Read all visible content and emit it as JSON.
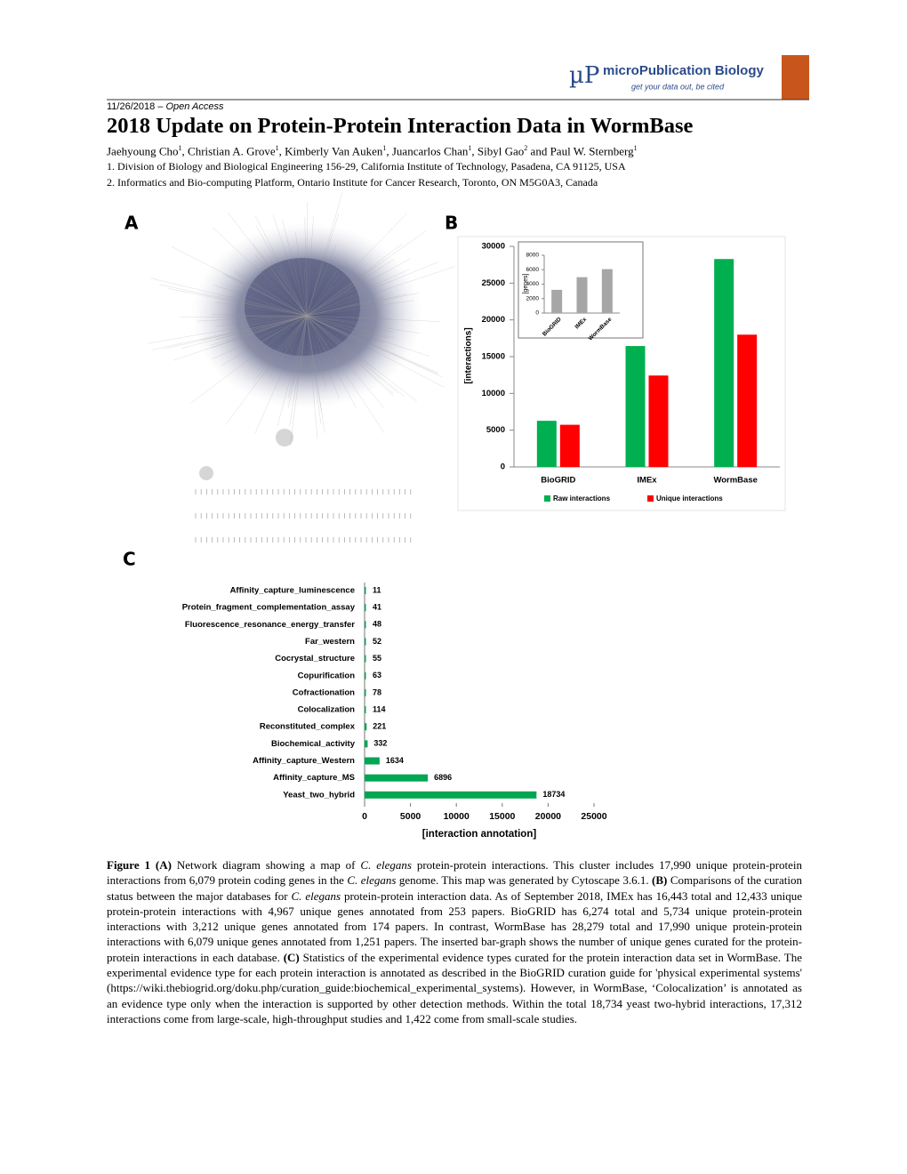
{
  "header": {
    "date": "11/26/2018 –",
    "access": "Open Access",
    "logo_mark": "µP",
    "logo_name": "microPublication Biology",
    "logo_tagline": "get your data out, be cited"
  },
  "title": "2018 Update on Protein-Protein Interaction Data in WormBase",
  "authors": [
    {
      "name": "Jaehyoung Cho",
      "aff": "1"
    },
    {
      "name": "Christian A. Grove",
      "aff": "1"
    },
    {
      "name": "Kimberly Van Auken",
      "aff": "1"
    },
    {
      "name": "Juancarlos Chan",
      "aff": "1"
    },
    {
      "name": "Sibyl Gao",
      "aff": "2"
    },
    {
      "name": "Paul W. Sternberg",
      "aff": "1"
    }
  ],
  "author_separator": ", ",
  "author_last_separator": " and ",
  "affiliations": [
    "1. Division of Biology and Biological Engineering 156-29, California Institute of Technology, Pasadena, CA 91125, USA",
    "2. Informatics and Bio-computing Platform, Ontario Institute for Cancer Research, Toronto, ON M5G0A3, Canada"
  ],
  "panels": {
    "a": "A",
    "b": "B",
    "c": "C"
  },
  "chart_data": [
    {
      "type": "bar",
      "categories": [
        "BioGRID",
        "IMEx",
        "WormBase"
      ],
      "series": [
        {
          "name": "Raw interactions",
          "color": "#00b050",
          "values": [
            6274,
            16443,
            28279
          ]
        },
        {
          "name": "Unique interactions",
          "color": "#ff0000",
          "values": [
            5734,
            12433,
            17990
          ]
        }
      ],
      "ylabel": "[interactions]",
      "ylim": [
        0,
        30000
      ],
      "yticks": [
        0,
        5000,
        10000,
        15000,
        20000,
        25000,
        30000
      ],
      "legend": "bottom"
    },
    {
      "type": "bar",
      "categories": [
        "BioGRID",
        "IMEx",
        "WormBase"
      ],
      "values": [
        3212,
        4967,
        6079
      ],
      "color": "#a6a6a6",
      "ylabel": "[genes]",
      "ylim": [
        0,
        8000
      ],
      "yticks": [
        0,
        2000,
        4000,
        6000,
        8000
      ]
    },
    {
      "type": "barh",
      "categories": [
        "Affinity_capture_luminescence",
        "Protein_fragment_complementation_assay",
        "Fluorescence_resonance_energy_transfer",
        "Far_western",
        "Cocrystal_structure",
        "Copurification",
        "Cofractionation",
        "Colocalization",
        "Reconstituted_complex",
        "Biochemical_activity",
        "Affinity_capture_Western",
        "Affinity_capture_MS",
        "Yeast_two_hybrid"
      ],
      "values": [
        11,
        41,
        48,
        52,
        55,
        63,
        78,
        114,
        221,
        332,
        1634,
        6896,
        18734
      ],
      "color": "#00a651",
      "xlabel": "[interaction annotation]",
      "xlim": [
        0,
        25000
      ],
      "xticks": [
        0,
        5000,
        10000,
        15000,
        20000,
        25000
      ]
    }
  ],
  "caption": [
    {
      "text": "Figure 1 (A)",
      "style": "bold"
    },
    {
      "text": " Network diagram showing a map of "
    },
    {
      "text": "C. elegans",
      "style": "italic"
    },
    {
      "text": " protein-protein interactions. This cluster includes 17,990 unique protein-protein interactions from 6,079 protein coding genes in the "
    },
    {
      "text": "C. elegans",
      "style": "italic"
    },
    {
      "text": " genome. This map was generated by Cytoscape 3.6.1. "
    },
    {
      "text": "(B)",
      "style": "bold"
    },
    {
      "text": " Comparisons of the curation status between the major databases for "
    },
    {
      "text": "C. elegans",
      "style": "italic"
    },
    {
      "text": " protein-protein interaction data. As of September 2018, IMEx has 16,443 total and 12,433 unique protein-protein interactions with 4,967 unique genes annotated from 253 papers. BioGRID has 6,274 total and 5,734 unique protein-protein interactions with 3,212 unique genes annotated from 174 papers. In contrast, WormBase has 28,279 total and 17,990 unique protein-protein interactions with 6,079 unique genes annotated from 1,251 papers. The inserted bar-graph shows the number of unique genes curated for the protein-protein interactions in each database. "
    },
    {
      "text": "(C)",
      "style": "bold"
    },
    {
      "text": " Statistics of the experimental evidence types curated for the protein interaction data set in WormBase. The experimental evidence type for each protein interaction is annotated as described in the BioGRID curation guide for 'physical experimental systems' (https://wiki.thebiogrid.org/doku.php/curation_guide:biochemical_experimental_systems). However, in WormBase, ‘Colocalization’ is annotated as an evidence type only when the interaction is supported by other detection methods. Within the total 18,734 yeast two-hybrid interactions, 17,312 interactions come from large-scale, high-throughput studies and 1,422 come from small-scale studies."
    }
  ]
}
